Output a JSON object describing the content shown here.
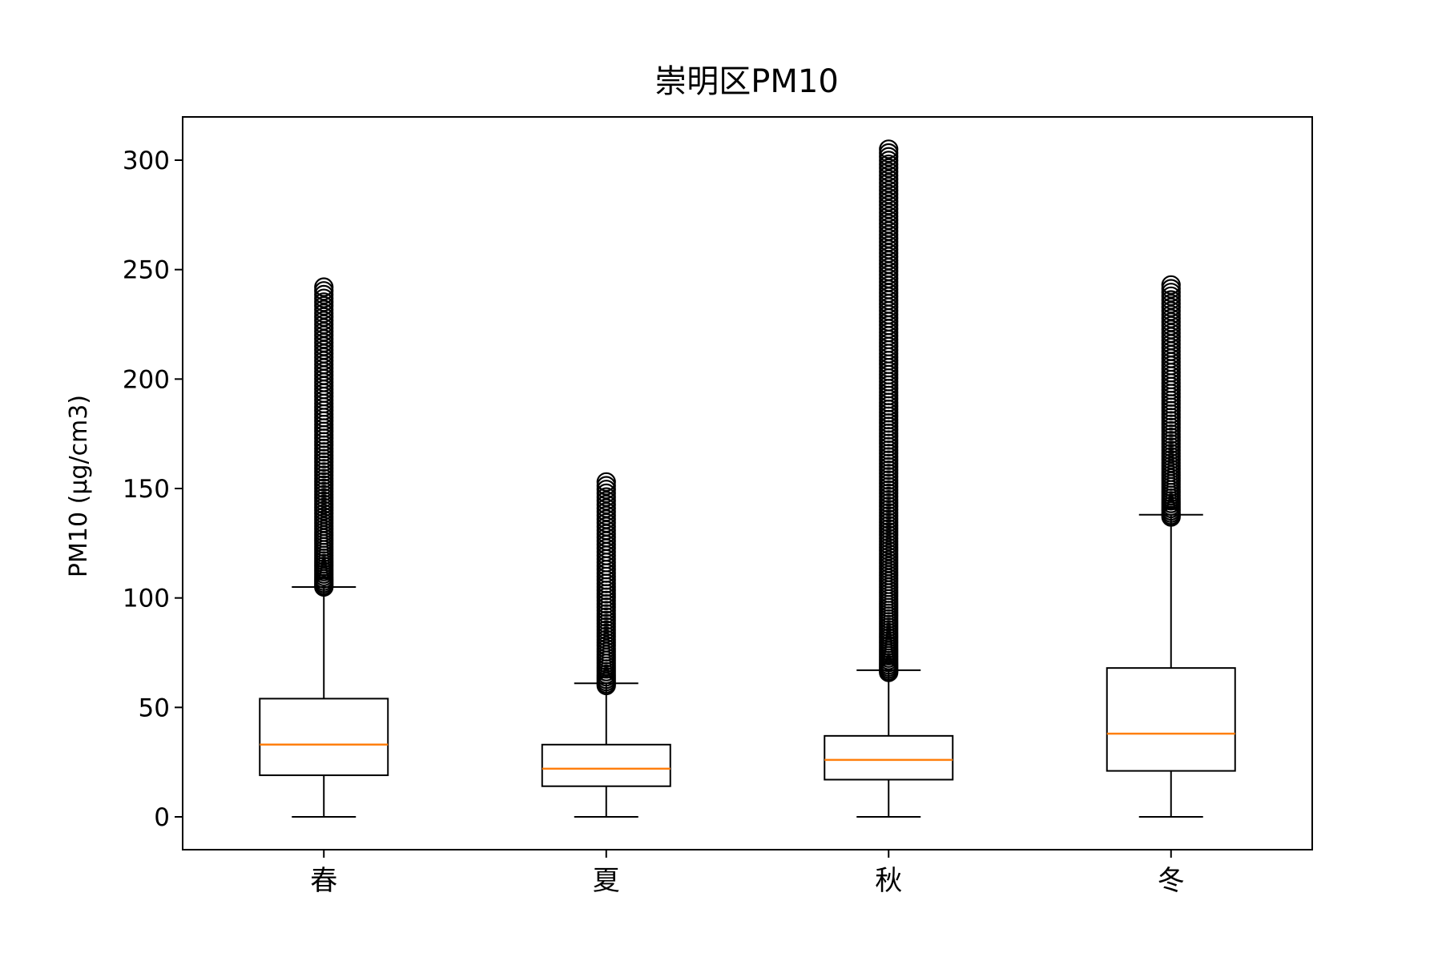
{
  "chart_data": {
    "type": "box",
    "title": "崇明区PM10",
    "xlabel": "",
    "ylabel": "PM10 (μg/cm3)",
    "categories": [
      "春",
      "夏",
      "秋",
      "冬"
    ],
    "ylim": [
      -15,
      320
    ],
    "yticks": [
      0,
      50,
      100,
      150,
      200,
      250,
      300
    ],
    "grid": false,
    "median_color": "#ff7f0e",
    "box_color": "#000000",
    "boxes": [
      {
        "category": "春",
        "whisker_low": 0,
        "q1": 19,
        "median": 33,
        "q3": 54,
        "whisker_high": 105,
        "flier_min": 105,
        "flier_max": 242
      },
      {
        "category": "夏",
        "whisker_low": 0,
        "q1": 14,
        "median": 22,
        "q3": 33,
        "whisker_high": 61,
        "flier_min": 60,
        "flier_max": 153
      },
      {
        "category": "秋",
        "whisker_low": 0,
        "q1": 17,
        "median": 26,
        "q3": 37,
        "whisker_high": 67,
        "flier_min": 66,
        "flier_max": 305
      },
      {
        "category": "冬",
        "whisker_low": 0,
        "q1": 21,
        "median": 38,
        "q3": 68,
        "whisker_high": 138,
        "flier_min": 137,
        "flier_max": 243
      }
    ]
  }
}
